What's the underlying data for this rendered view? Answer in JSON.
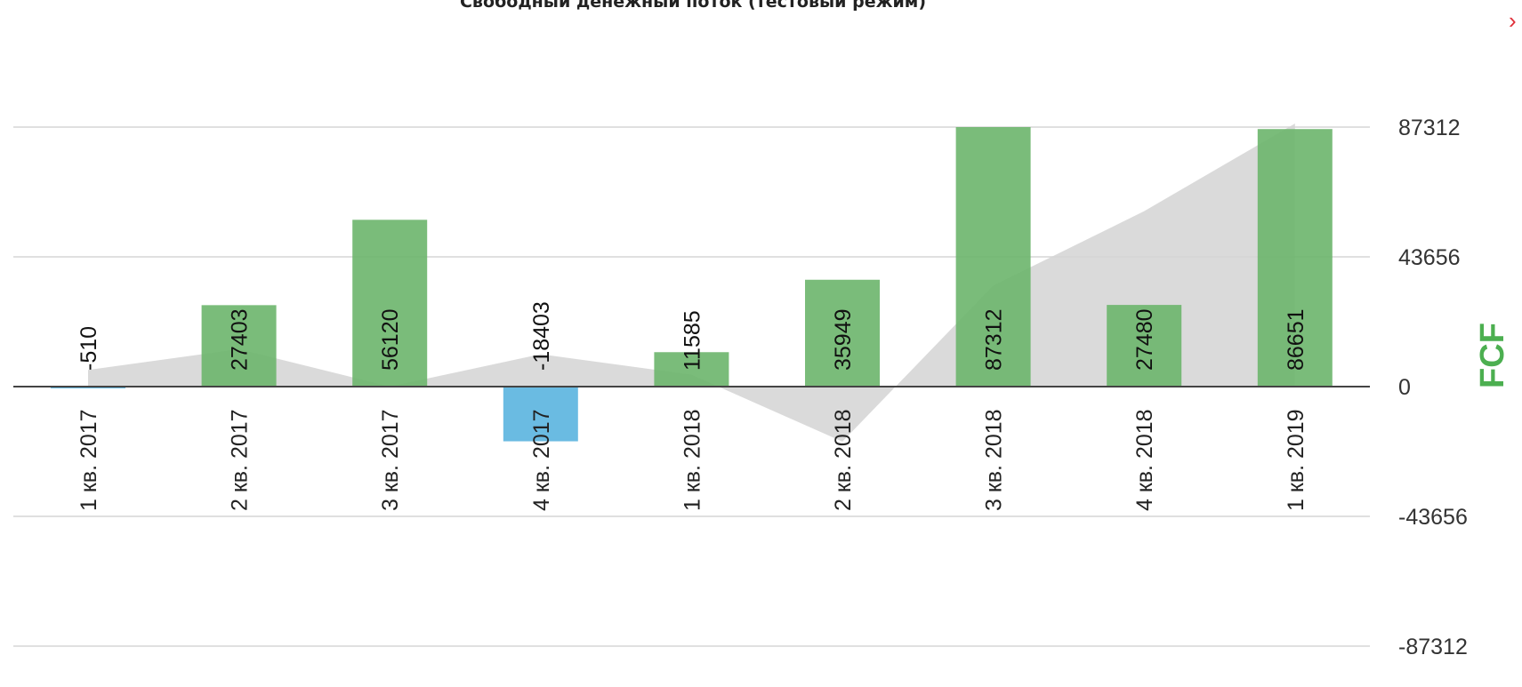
{
  "chart_data": {
    "type": "bar",
    "title": "Свободный денежный поток (тестовый режим)",
    "ylabel": "FCF",
    "xlabel": "",
    "categories": [
      "1 кв. 2017",
      "2 кв. 2017",
      "3 кв. 2017",
      "4 кв. 2017",
      "1 кв. 2018",
      "2 кв. 2018",
      "3 кв. 2018",
      "4 кв. 2018",
      "1 кв. 2019"
    ],
    "series": [
      {
        "values": [
          -510,
          27403,
          56120,
          -18403,
          11585,
          35949,
          87312,
          27480,
          86651
        ]
      }
    ],
    "area_series": [
      {
        "values": [
          5600,
          12600,
          0,
          10900,
          4000,
          -18500,
          34000,
          59000,
          88500
        ]
      }
    ],
    "yticks": [
      "87312",
      "43656",
      "0",
      "-43656",
      "-87312"
    ],
    "ylim": [
      -87312,
      87312
    ],
    "colors": {
      "positive": "#6cb56c",
      "negative": "#5ab4df",
      "area": "#d4d4d4",
      "ylabel": "#4caf50"
    },
    "grid": true,
    "legend": "none"
  },
  "controls": {
    "close_icon": "close-icon",
    "close_glyph": "›"
  }
}
